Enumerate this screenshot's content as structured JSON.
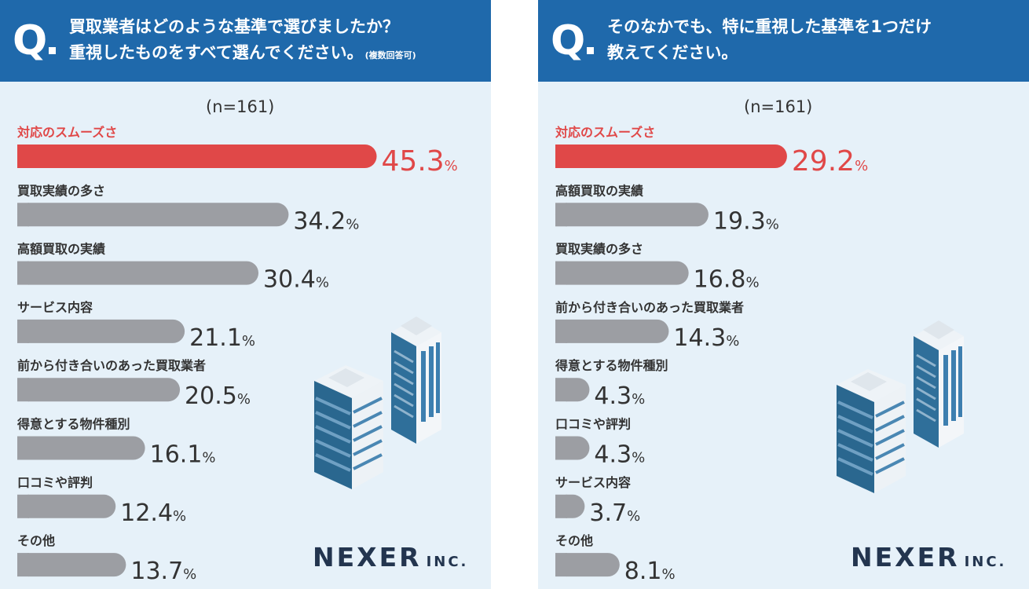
{
  "panels": [
    {
      "question_line1": "買取業者はどのような基準で選びましたか？",
      "question_line2": "重視したものをすべて選んでください。",
      "question_note": "(複数回答可)",
      "q_mark": "Q",
      "sample": "(n=161)",
      "brand": {
        "name": "NEXER",
        "suffix": "INC."
      }
    },
    {
      "question_line1": "そのなかでも、特に重視した基準を1つだけ",
      "question_line2": "教えてください。",
      "question_note": "",
      "q_mark": "Q",
      "sample": "(n=161)",
      "brand": {
        "name": "NEXER",
        "suffix": "INC."
      }
    }
  ],
  "colors": {
    "header": "#1f69ab",
    "highlight": "#e04848",
    "bar": "#9c9ea3",
    "background": "#e6f1f9",
    "text": "#333333"
  },
  "chart_data": [
    {
      "type": "bar",
      "orientation": "horizontal",
      "categories": [
        "対応のスムーズさ",
        "買取実績の多さ",
        "高額買取の実績",
        "サービス内容",
        "前から付き合いのあった買取業者",
        "得意とする物件種別",
        "口コミや評判",
        "その他"
      ],
      "values": [
        45.3,
        34.2,
        30.4,
        21.1,
        20.5,
        16.1,
        12.4,
        13.7
      ],
      "value_labels": [
        "45.3",
        "34.2",
        "30.4",
        "21.1",
        "20.5",
        "16.1",
        "12.4",
        "13.7"
      ],
      "unit": "%",
      "highlight_index": 0,
      "xlim": [
        0,
        50
      ]
    },
    {
      "type": "bar",
      "orientation": "horizontal",
      "categories": [
        "対応のスムーズさ",
        "高額買取の実績",
        "買取実績の多さ",
        "前から付き合いのあった買取業者",
        "得意とする物件種別",
        "口コミや評判",
        "サービス内容",
        "その他"
      ],
      "values": [
        29.2,
        19.3,
        16.8,
        14.3,
        4.3,
        4.3,
        3.7,
        8.1
      ],
      "value_labels": [
        "29.2",
        "19.3",
        "16.8",
        "14.3",
        "4.3",
        "4.3",
        "3.7",
        "8.1"
      ],
      "unit": "%",
      "highlight_index": 0,
      "xlim": [
        0,
        50
      ]
    }
  ]
}
